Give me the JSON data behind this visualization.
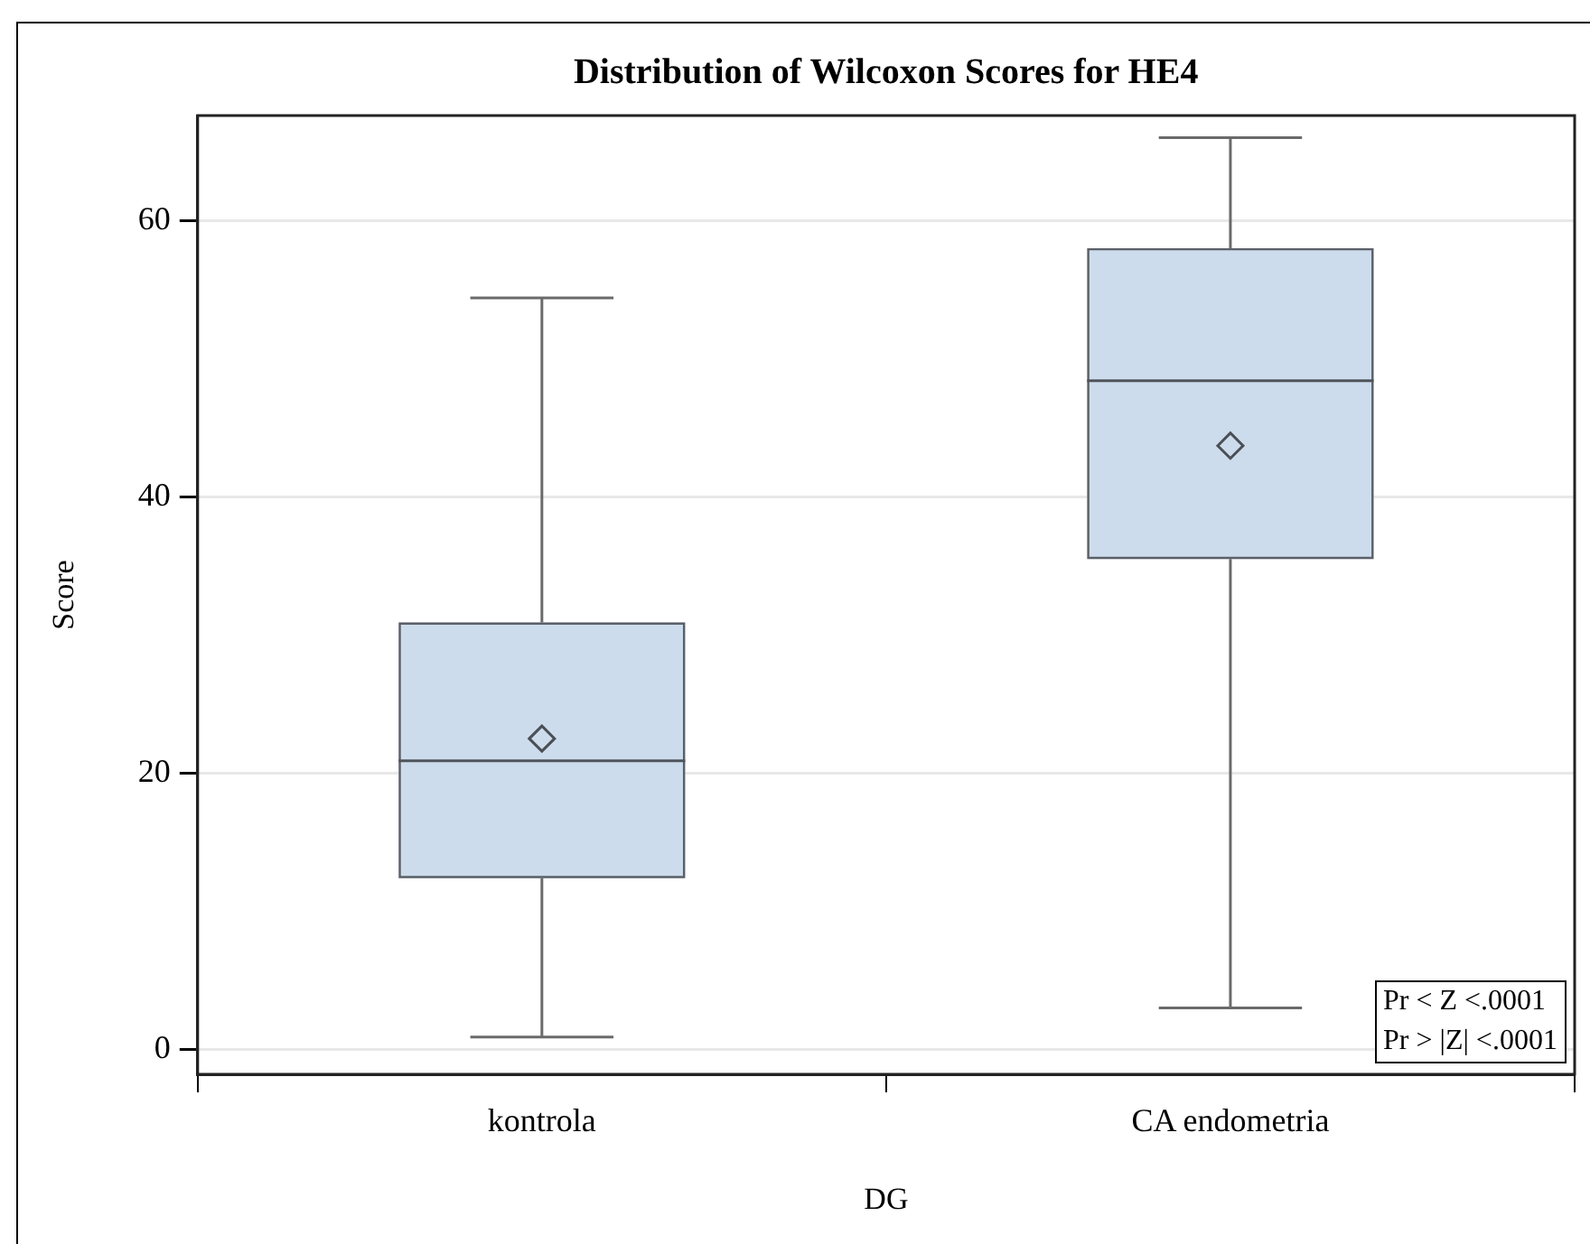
{
  "chart_data": {
    "type": "box",
    "title": "Distribution of Wilcoxon Scores for HE4",
    "xlabel": "DG",
    "ylabel": "Score",
    "categories": [
      "kontrola",
      "CA endometria"
    ],
    "boxes": [
      {
        "low": 0.9,
        "q1": 12.4,
        "median": 20.9,
        "q3": 30.9,
        "high": 54.4,
        "mean": 22.5
      },
      {
        "low": 3,
        "q1": 35.5,
        "median": 48.4,
        "q3": 58,
        "high": 66,
        "mean": 43.7
      }
    ],
    "color": "#cddcec",
    "ylim": [
      -1.8,
      67.6
    ],
    "yticks": [
      0,
      20,
      40,
      60
    ],
    "grid": "y",
    "marker": "diamond",
    "annotations": [
      "Pr < Z <.0001",
      "Pr > |Z| <.0001"
    ]
  }
}
